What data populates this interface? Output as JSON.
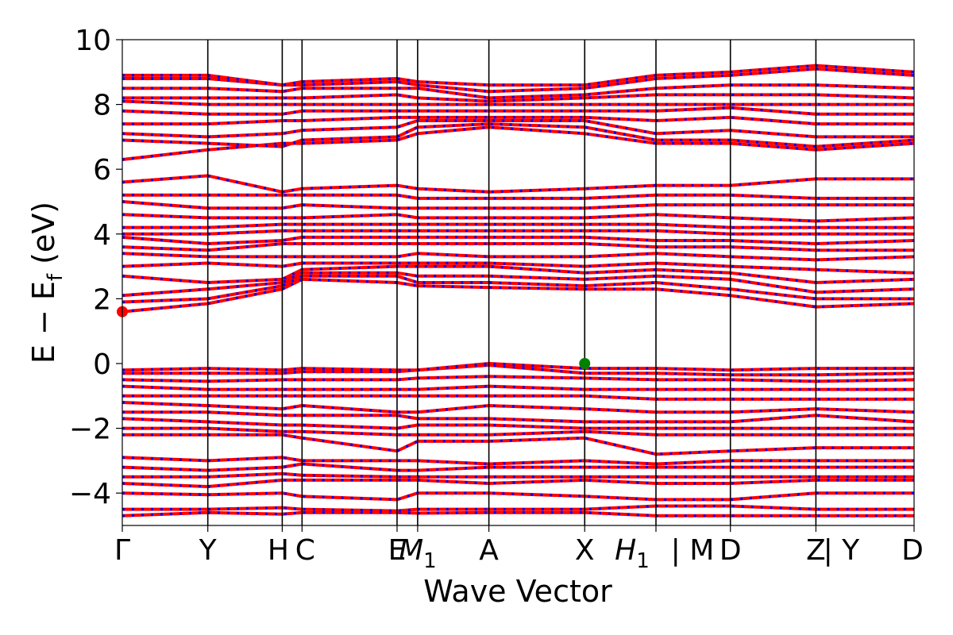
{
  "chart_data": {
    "type": "line",
    "xlabel": "Wave Vector",
    "ylabel": "E − E",
    "ylabel_sub": "f",
    "ylabel_unit": " (eV)",
    "ylim": [
      -5,
      10
    ],
    "yticks": [
      {
        "value": -4,
        "label": "−4"
      },
      {
        "value": -2,
        "label": "−2"
      },
      {
        "value": 0,
        "label": "0"
      },
      {
        "value": 2,
        "label": "2"
      },
      {
        "value": 4,
        "label": "4"
      },
      {
        "value": 6,
        "label": "6"
      },
      {
        "value": 8,
        "label": "8"
      },
      {
        "value": 10,
        "label": "10"
      }
    ],
    "xlim": [
      0,
      1
    ],
    "kpoints": [
      {
        "pos": 0.0,
        "label": "Γ",
        "sub": ""
      },
      {
        "pos": 0.108,
        "label": "Y",
        "sub": ""
      },
      {
        "pos": 0.202,
        "label": "H",
        "sub": ""
      },
      {
        "pos": 0.227,
        "label": "C",
        "sub": ""
      },
      {
        "pos": 0.347,
        "label": "E",
        "sub": ""
      },
      {
        "pos": 0.373,
        "label": "M",
        "sub": "1"
      },
      {
        "pos": 0.463,
        "label": "A",
        "sub": ""
      },
      {
        "pos": 0.584,
        "label": "X",
        "sub": ""
      },
      {
        "pos": 0.674,
        "label": "H",
        "sub": "1"
      },
      {
        "pos": 0.674,
        "label": "| M",
        "sub": ""
      },
      {
        "pos": 0.768,
        "label": "D",
        "sub": ""
      },
      {
        "pos": 0.876,
        "label": "Z",
        "sub": ""
      },
      {
        "pos": 0.876,
        "label": "| Y",
        "sub": ""
      },
      {
        "pos": 1.0,
        "label": "D",
        "sub": ""
      }
    ],
    "series": [
      {
        "color": "#ff0000",
        "style": "solid"
      },
      {
        "color": "#0000ff",
        "style": "dotted"
      }
    ],
    "conduction_band_minimum": {
      "x": 0.0,
      "y": 1.6,
      "color": "#ff0000"
    },
    "valence_band_maximum": {
      "x": 0.584,
      "y": 0.0,
      "color": "#008000"
    },
    "bands": [
      [
        -4.7,
        -4.6,
        -4.65,
        -4.6,
        -4.6,
        -4.62,
        -4.6,
        -4.6,
        -4.7,
        -4.7,
        -4.7,
        -4.7
      ],
      [
        -4.5,
        -4.5,
        -4.45,
        -4.5,
        -4.55,
        -4.5,
        -4.5,
        -4.5,
        -4.4,
        -4.4,
        -4.5,
        -4.5
      ],
      [
        -4.0,
        -4.05,
        -4.0,
        -4.1,
        -4.2,
        -4.0,
        -4.0,
        -4.1,
        -4.2,
        -4.2,
        -4.0,
        -4.0
      ],
      [
        -3.7,
        -3.8,
        -3.6,
        -3.6,
        -3.6,
        -3.6,
        -3.7,
        -3.6,
        -3.7,
        -3.7,
        -3.6,
        -3.6
      ],
      [
        -3.5,
        -3.5,
        -3.4,
        -3.45,
        -3.5,
        -3.5,
        -3.5,
        -3.5,
        -3.5,
        -3.5,
        -3.5,
        -3.5
      ],
      [
        -3.2,
        -3.3,
        -3.2,
        -3.1,
        -3.3,
        -3.3,
        -3.2,
        -3.2,
        -3.2,
        -3.2,
        -3.2,
        -3.2
      ],
      [
        -2.9,
        -3.0,
        -2.9,
        -3.0,
        -3.0,
        -3.0,
        -3.1,
        -3.0,
        -3.1,
        -3.0,
        -3.0,
        -3.0
      ],
      [
        -2.2,
        -2.2,
        -2.2,
        -2.3,
        -2.7,
        -2.4,
        -2.4,
        -2.3,
        -2.8,
        -2.7,
        -2.6,
        -2.6
      ],
      [
        -2.0,
        -2.0,
        -2.1,
        -2.1,
        -2.2,
        -2.2,
        -2.2,
        -2.1,
        -2.2,
        -2.2,
        -2.2,
        -2.2
      ],
      [
        -1.7,
        -1.8,
        -1.9,
        -1.9,
        -2.0,
        -1.9,
        -1.9,
        -2.0,
        -2.0,
        -2.0,
        -2.0,
        -2.0
      ],
      [
        -1.5,
        -1.5,
        -1.6,
        -1.6,
        -1.6,
        -1.7,
        -1.7,
        -1.8,
        -1.8,
        -1.8,
        -1.6,
        -1.8
      ],
      [
        -1.2,
        -1.3,
        -1.4,
        -1.3,
        -1.5,
        -1.5,
        -1.3,
        -1.4,
        -1.5,
        -1.5,
        -1.4,
        -1.5
      ],
      [
        -1.0,
        -1.0,
        -1.0,
        -1.0,
        -1.0,
        -1.0,
        -1.0,
        -1.0,
        -1.1,
        -1.1,
        -1.1,
        -1.1
      ],
      [
        -0.7,
        -0.8,
        -0.8,
        -0.8,
        -0.8,
        -0.8,
        -0.7,
        -0.8,
        -0.8,
        -0.8,
        -0.8,
        -0.8
      ],
      [
        -0.5,
        -0.55,
        -0.5,
        -0.5,
        -0.5,
        -0.45,
        -0.4,
        -0.45,
        -0.5,
        -0.5,
        -0.55,
        -0.5
      ],
      [
        -0.3,
        -0.3,
        -0.3,
        -0.25,
        -0.25,
        -0.2,
        -0.05,
        -0.3,
        -0.3,
        -0.35,
        -0.35,
        -0.3
      ],
      [
        -0.2,
        -0.15,
        -0.2,
        -0.15,
        -0.2,
        -0.2,
        0.0,
        -0.15,
        -0.15,
        -0.2,
        -0.15,
        -0.15
      ],
      [
        1.6,
        1.85,
        2.3,
        2.6,
        2.5,
        2.4,
        2.35,
        2.3,
        2.3,
        2.1,
        1.75,
        1.85
      ],
      [
        1.9,
        2.0,
        2.4,
        2.7,
        2.7,
        2.5,
        2.5,
        2.4,
        2.5,
        2.3,
        2.0,
        2.0
      ],
      [
        2.1,
        2.3,
        2.5,
        2.8,
        2.8,
        2.7,
        2.7,
        2.6,
        2.7,
        2.6,
        2.2,
        2.3
      ],
      [
        2.7,
        2.5,
        2.6,
        2.9,
        3.0,
        3.0,
        3.0,
        2.8,
        2.9,
        2.8,
        2.5,
        2.6
      ],
      [
        3.0,
        3.1,
        3.0,
        3.1,
        3.1,
        3.1,
        3.1,
        3.0,
        3.1,
        3.0,
        2.9,
        2.8
      ],
      [
        3.4,
        3.3,
        3.3,
        3.3,
        3.3,
        3.4,
        3.3,
        3.3,
        3.4,
        3.3,
        3.2,
        3.3
      ],
      [
        3.6,
        3.5,
        3.7,
        3.7,
        3.7,
        3.7,
        3.7,
        3.7,
        3.6,
        3.6,
        3.5,
        3.5
      ],
      [
        3.9,
        3.7,
        3.8,
        3.9,
        3.9,
        3.9,
        3.9,
        3.9,
        3.8,
        3.8,
        3.7,
        3.8
      ],
      [
        4.0,
        4.0,
        4.1,
        4.1,
        4.1,
        4.1,
        4.1,
        4.1,
        4.1,
        4.0,
        4.0,
        4.0
      ],
      [
        4.2,
        4.2,
        4.3,
        4.3,
        4.3,
        4.3,
        4.3,
        4.3,
        4.3,
        4.2,
        4.2,
        4.2
      ],
      [
        4.6,
        4.5,
        4.5,
        4.5,
        4.6,
        4.5,
        4.5,
        4.5,
        4.6,
        4.5,
        4.4,
        4.5
      ],
      [
        5.0,
        4.8,
        4.8,
        4.9,
        4.8,
        4.8,
        4.8,
        4.8,
        4.9,
        4.9,
        4.9,
        4.9
      ],
      [
        5.2,
        5.2,
        5.2,
        5.2,
        5.2,
        5.1,
        5.1,
        5.1,
        5.2,
        5.2,
        5.1,
        5.1
      ],
      [
        5.6,
        5.8,
        5.3,
        5.4,
        5.5,
        5.4,
        5.3,
        5.4,
        5.5,
        5.5,
        5.7,
        5.7
      ],
      [
        6.3,
        6.6,
        6.8,
        6.8,
        6.9,
        7.1,
        7.3,
        7.1,
        6.8,
        6.8,
        6.6,
        6.8
      ],
      [
        6.9,
        6.8,
        6.7,
        6.9,
        7.0,
        7.3,
        7.4,
        7.3,
        6.9,
        6.9,
        6.7,
        6.9
      ],
      [
        7.1,
        7.0,
        7.1,
        7.2,
        7.3,
        7.5,
        7.5,
        7.5,
        7.1,
        7.2,
        7.0,
        7.0
      ],
      [
        7.4,
        7.4,
        7.5,
        7.5,
        7.6,
        7.6,
        7.6,
        7.6,
        7.5,
        7.6,
        7.4,
        7.4
      ],
      [
        7.8,
        7.7,
        7.7,
        7.8,
        7.8,
        7.8,
        7.8,
        7.8,
        7.8,
        7.9,
        7.7,
        7.7
      ],
      [
        8.1,
        8.0,
        8.0,
        8.0,
        8.0,
        8.0,
        8.0,
        8.0,
        8.0,
        8.0,
        8.0,
        8.0
      ],
      [
        8.2,
        8.2,
        8.2,
        8.2,
        8.3,
        8.2,
        8.1,
        8.2,
        8.3,
        8.3,
        8.3,
        8.2
      ],
      [
        8.5,
        8.5,
        8.4,
        8.5,
        8.5,
        8.5,
        8.2,
        8.3,
        8.5,
        8.6,
        8.6,
        8.5
      ],
      [
        8.8,
        8.8,
        8.6,
        8.6,
        8.7,
        8.6,
        8.4,
        8.5,
        8.8,
        8.9,
        9.1,
        8.9
      ],
      [
        8.9,
        8.9,
        8.6,
        8.7,
        8.8,
        8.7,
        8.6,
        8.6,
        8.9,
        9.0,
        9.2,
        9.0
      ]
    ]
  }
}
